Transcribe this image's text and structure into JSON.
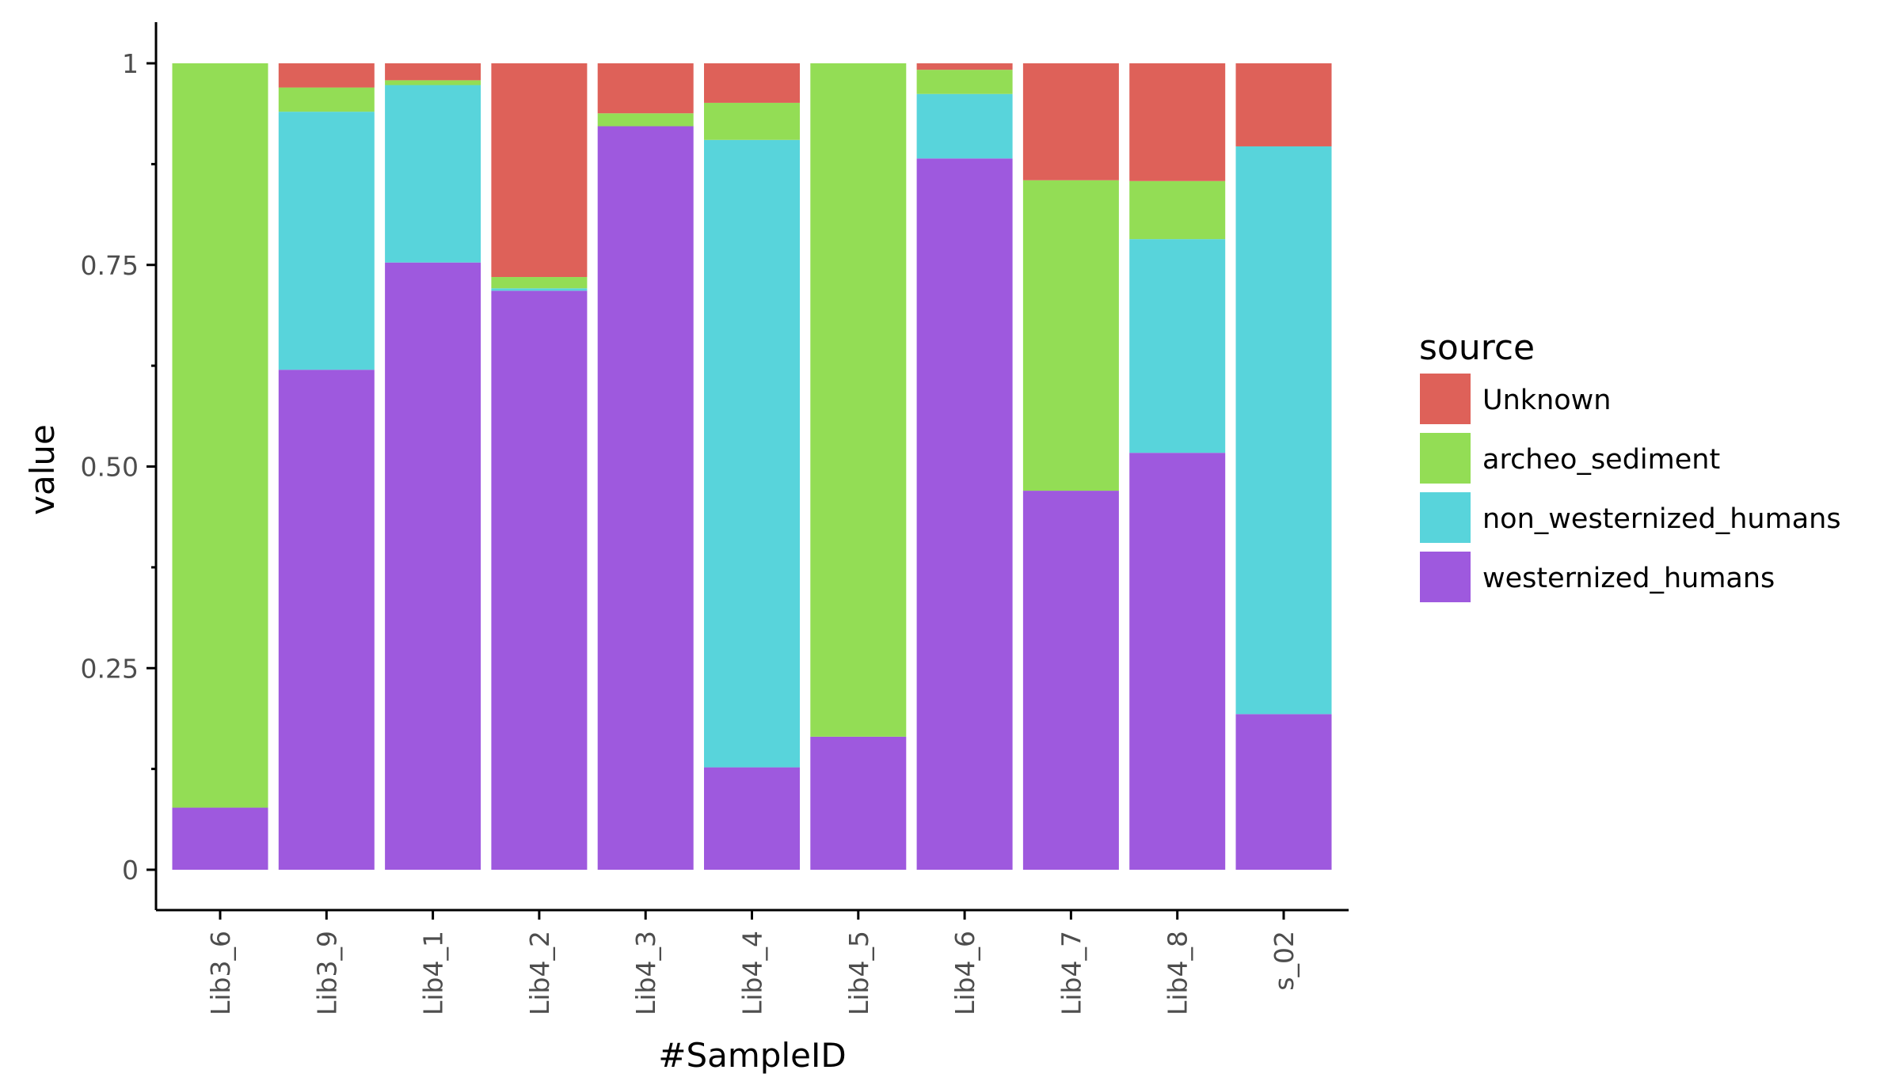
{
  "chart_data": {
    "type": "bar",
    "stacked": true,
    "xlabel": "#SampleID",
    "ylabel": "value",
    "ylim": [
      0,
      1
    ],
    "yticks": [
      0,
      0.25,
      0.5,
      0.75,
      1
    ],
    "ytick_labels": [
      "0",
      "0.25",
      "0.50",
      "0.75",
      "1"
    ],
    "grid": false,
    "legend": {
      "title": "source",
      "placement": "right"
    },
    "categories": [
      "Lib3_6",
      "Lib3_9",
      "Lib4_1",
      "Lib4_2",
      "Lib4_3",
      "Lib4_4",
      "Lib4_5",
      "Lib4_6",
      "Lib4_7",
      "Lib4_8",
      "s_02"
    ],
    "series": [
      {
        "name": "westernized_humans",
        "color": "#9E59DE",
        "values": [
          0.077,
          0.62,
          0.753,
          0.718,
          0.922,
          0.127,
          0.165,
          0.882,
          0.47,
          0.517,
          0.193
        ]
      },
      {
        "name": "non_westernized_humans",
        "color": "#58D4DB",
        "values": [
          0.0,
          0.32,
          0.22,
          0.003,
          0.0,
          0.778,
          0.0,
          0.08,
          0.0,
          0.265,
          0.704
        ]
      },
      {
        "name": "archeo_sediment",
        "color": "#93DD55",
        "values": [
          0.923,
          0.03,
          0.006,
          0.014,
          0.016,
          0.046,
          0.835,
          0.03,
          0.385,
          0.072,
          0.0
        ]
      },
      {
        "name": "Unknown",
        "color": "#DE6159",
        "values": [
          0.0,
          0.03,
          0.021,
          0.265,
          0.062,
          0.049,
          0.0,
          0.008,
          0.145,
          0.146,
          0.103
        ]
      }
    ],
    "legend_order": [
      "Unknown",
      "archeo_sediment",
      "non_westernized_humans",
      "westernized_humans"
    ]
  }
}
